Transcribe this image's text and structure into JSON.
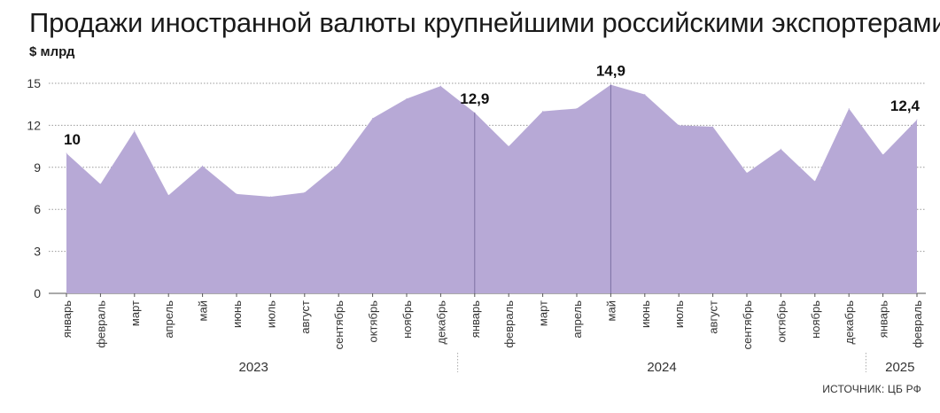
{
  "chart_data": {
    "type": "area",
    "title": "Продажи иностранной валюты крупнейшими российскими экспортерами",
    "ylabel": "$ млрд",
    "source": "ИСТОЧНИК: ЦБ РФ",
    "ylim": [
      0,
      15
    ],
    "yticks": [
      "0",
      "3",
      "6",
      "9",
      "12",
      "15"
    ],
    "grid": true,
    "color": "#b7a9d6",
    "categories": [
      "январь",
      "февраль",
      "март",
      "апрель",
      "май",
      "июнь",
      "июль",
      "август",
      "сентябрь",
      "октябрь",
      "ноябрь",
      "декабрь",
      "январь",
      "февраль",
      "март",
      "апрель",
      "май",
      "июнь",
      "июль",
      "август",
      "сентябрь",
      "октябрь",
      "ноябрь",
      "декабрь",
      "январь",
      "февраль"
    ],
    "years": [
      {
        "label": "2023",
        "start": 0,
        "end": 11
      },
      {
        "label": "2024",
        "start": 12,
        "end": 23
      },
      {
        "label": "2025",
        "start": 24,
        "end": 25
      }
    ],
    "series": [
      {
        "values": [
          10,
          7.8,
          11.6,
          7.0,
          9.1,
          7.1,
          6.9,
          7.2,
          9.2,
          12.5,
          13.9,
          14.8,
          12.9,
          10.5,
          13.0,
          13.2,
          14.9,
          14.2,
          12.0,
          11.9,
          8.6,
          10.3,
          8.0,
          13.2,
          9.9,
          12.4
        ]
      }
    ],
    "annotations": [
      {
        "index": 0,
        "text": "10"
      },
      {
        "index": 12,
        "text": "12,9"
      },
      {
        "index": 16,
        "text": "14,9"
      },
      {
        "index": 25,
        "text": "12,4"
      }
    ],
    "vlines": [
      12,
      16,
      25
    ]
  }
}
